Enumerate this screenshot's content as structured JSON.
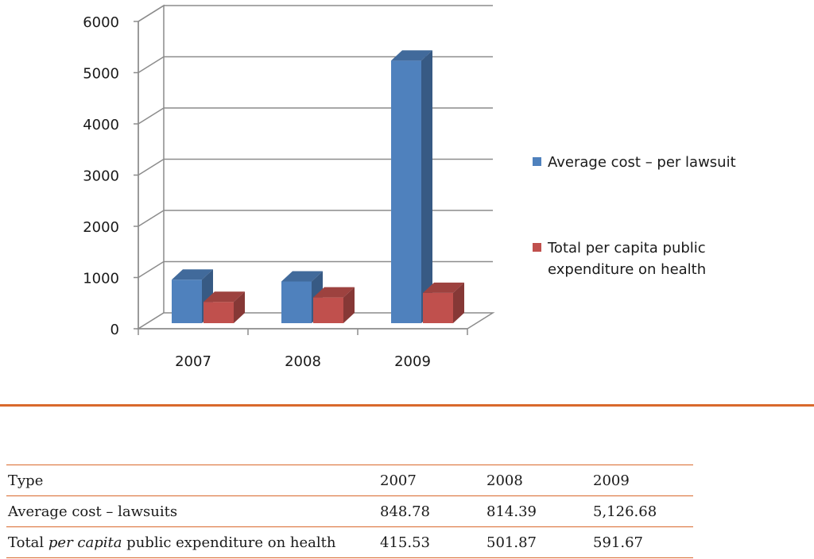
{
  "chart_data": {
    "type": "bar",
    "categories": [
      "2007",
      "2008",
      "2009"
    ],
    "series": [
      {
        "name": "Average cost – per lawsuit",
        "color": "#4f81bd",
        "values": [
          848.78,
          814.39,
          5126.68
        ]
      },
      {
        "name": "Total per capita public expenditure on health",
        "legend_lines": [
          "Total per capita public",
          "expenditure on health"
        ],
        "color": "#c0504d",
        "values": [
          415.53,
          501.87,
          591.67
        ]
      }
    ],
    "ylim": [
      0,
      6000
    ],
    "yticks": [
      "0",
      "1000",
      "2000",
      "3000",
      "4000",
      "5000",
      "6000"
    ],
    "grid": true,
    "legend_position": "right",
    "title": "",
    "xlabel": "",
    "ylabel": ""
  },
  "table": {
    "headers": [
      "Type",
      "2007",
      "2008",
      "2009"
    ],
    "rows": [
      {
        "label": "Average cost – lawsuits",
        "values": [
          "848.78",
          "814.39",
          "5,126.68"
        ]
      },
      {
        "label_pre": "Total ",
        "label_em": "per capita",
        "label_post": " public expenditure on health",
        "values": [
          "415.53",
          "501.87",
          "591.67"
        ]
      }
    ]
  }
}
